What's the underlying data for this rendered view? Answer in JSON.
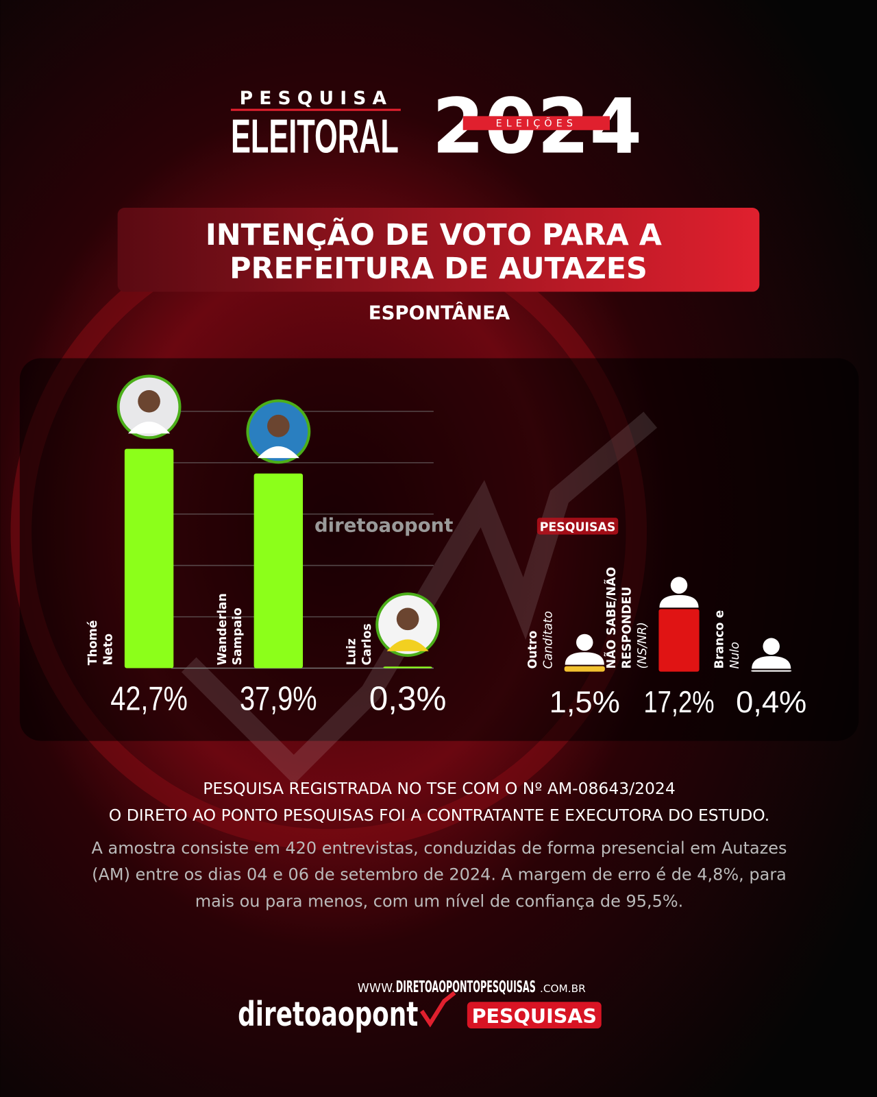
{
  "header": {
    "kicker": "PESQUISA",
    "brand": "ELEITORAL",
    "year": "2024",
    "ribbon": "ELEIÇÕES",
    "title_lines": [
      "INTENÇÃO DE VOTO PARA A",
      "PREFEITURA DE AUTAZES"
    ],
    "subtitle": "ESPONTÂNEA"
  },
  "watermark": {
    "name": "diretoaopont",
    "tag": "PESQUISAS"
  },
  "chart_data": [
    {
      "type": "bar",
      "categories": [
        [
          "Thomé",
          "Neto"
        ],
        [
          "Wanderlan",
          "Sampaio"
        ],
        [
          "Luiz",
          "Carlos"
        ]
      ],
      "values": [
        42.7,
        37.9,
        0.3
      ],
      "value_labels": [
        "42,7%",
        "37,9%",
        "0,3%"
      ],
      "color": "#8cff1a",
      "ylim": [
        0,
        50
      ],
      "grid": true,
      "marker": "photo"
    },
    {
      "type": "bar",
      "categories": [
        [
          "Outro",
          "Canditato"
        ],
        [
          "NÃO SABE/NÃO",
          "RESPONDEU",
          "(NS/NR)"
        ],
        [
          "Branco e",
          "Nulo"
        ]
      ],
      "values": [
        1.5,
        17.2,
        0.4
      ],
      "value_labels": [
        "1,5%",
        "17,2%",
        "0,4%"
      ],
      "colors": [
        "#f2c230",
        "#e01414",
        "#ffffff"
      ],
      "ylim": [
        0,
        20
      ],
      "grid": false,
      "marker": "silhouette"
    }
  ],
  "notes": [
    "PESQUISA REGISTRADA NO TSE COM O Nº AM-08643/2024",
    "O DIRETO AO PONTO PESQUISAS FOI A CONTRATANTE E EXECUTORA DO ESTUDO."
  ],
  "methodology": [
    "A amostra consiste em 420 entrevistas, conduzidas de forma presencial em Autazes",
    "(AM) entre os dias 04 e 06 de setembro de 2024. A margem de erro é de 4,8%, para",
    "mais ou para menos, com um nível de confiança de 95,5%."
  ],
  "footer": {
    "www": "WWW.",
    "domain": "DIRETOAOPONTOPESQUISAS",
    "tld": ".COM.BR",
    "logo": "diretoaopont",
    "logo_tag": "PESQUISAS"
  }
}
